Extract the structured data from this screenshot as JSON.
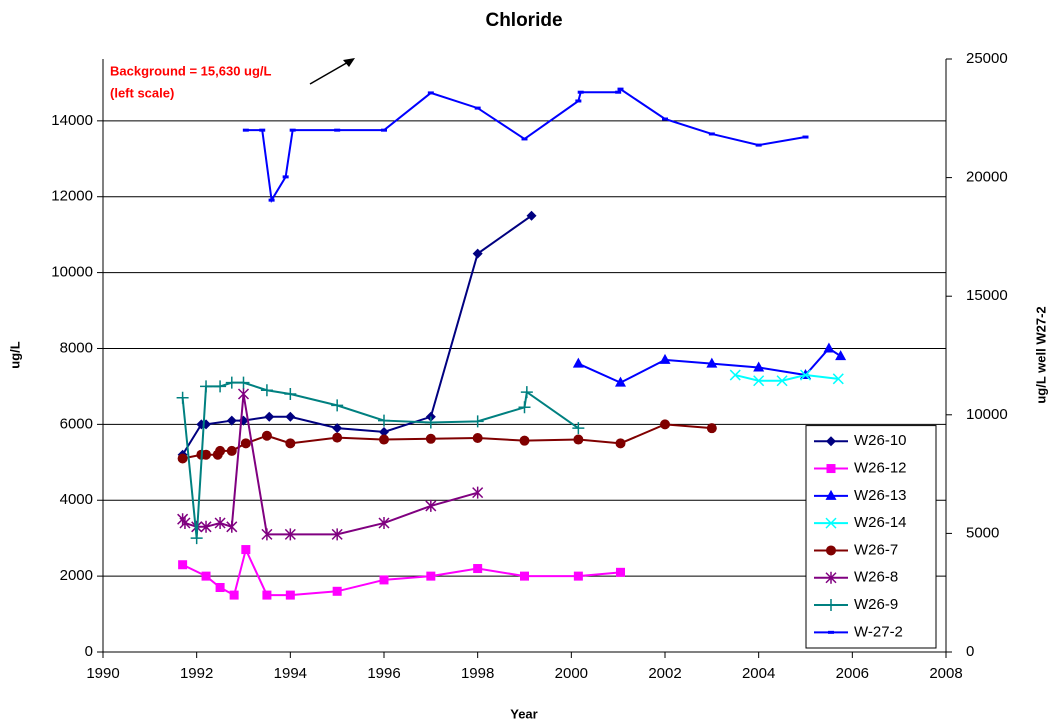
{
  "chart_data": {
    "type": "line",
    "title": "Chloride",
    "x_label": "Year",
    "y_label": "ug/L",
    "y2_label": "ug/L  well W27-2",
    "annotations": [
      "Background = 15,630 ug/L",
      "(left scale)"
    ],
    "xlim": [
      1990,
      2008
    ],
    "xticks": [
      1990,
      1992,
      1994,
      1996,
      1998,
      2000,
      2002,
      2004,
      2006,
      2008
    ],
    "ylim": [
      0,
      15630
    ],
    "yticks": [
      0,
      2000,
      4000,
      6000,
      8000,
      10000,
      12000,
      14000
    ],
    "y2lim": [
      0,
      25000
    ],
    "y2ticks": [
      0,
      5000,
      10000,
      15000,
      20000,
      25000
    ],
    "grid": true,
    "legend": "right",
    "series": [
      {
        "name": "W26-10",
        "color": "#000080",
        "marker": "diamond",
        "x": [
          1991.7,
          1992.1,
          1992.2,
          1992.75,
          1993.0,
          1993.55,
          1994.0,
          1995.0,
          1996.0,
          1997.0,
          1998.0,
          1999.15
        ],
        "values": [
          5200,
          6000,
          6000,
          6100,
          6100,
          6200,
          6200,
          5900,
          5800,
          6200,
          10500,
          11500
        ]
      },
      {
        "name": "W26-12",
        "color": "#ff00ff",
        "marker": "square",
        "x": [
          1991.7,
          1992.2,
          1992.5,
          1992.8,
          1993.05,
          1993.5,
          1994.0,
          1995.0,
          1996.0,
          1997.0,
          1998.0,
          1999.0,
          2000.15,
          2001.05
        ],
        "values": [
          2300,
          2000,
          1700,
          1500,
          2700,
          1500,
          1500,
          1600,
          1900,
          2000,
          2200,
          2000,
          2000,
          2100
        ]
      },
      {
        "name": "W26-13",
        "color": "#0000ff",
        "marker": "triangle",
        "x": [
          2000.15,
          2001.05,
          2002.0,
          2003.0,
          2004.0,
          2005.0,
          2005.5,
          2005.75
        ],
        "values": [
          7600,
          7100,
          7700,
          7600,
          7500,
          7300,
          8000,
          7800
        ]
      },
      {
        "name": "W26-14",
        "color": "#00ffff",
        "marker": "x",
        "x": [
          2003.5,
          2004.0,
          2004.5,
          2005.0,
          2005.7
        ],
        "values": [
          7300,
          7150,
          7150,
          7300,
          7200
        ]
      },
      {
        "name": "W26-7",
        "color": "#800000",
        "marker": "circle",
        "x": [
          1991.7,
          1992.1,
          1992.2,
          1992.45,
          1992.5,
          1992.75,
          1993.05,
          1993.5,
          1994.0,
          1995.0,
          1996.0,
          1997.0,
          1998.0,
          1999.0,
          2000.15,
          2001.05,
          2002.0,
          2003.0
        ],
        "values": [
          5100,
          5200,
          5200,
          5200,
          5300,
          5300,
          5500,
          5700,
          5500,
          5650,
          5600,
          5620,
          5640,
          5570,
          5600,
          5500,
          6000,
          5900
        ]
      },
      {
        "name": "W26-8",
        "color": "#800080",
        "marker": "star",
        "x": [
          1991.7,
          1991.75,
          1992.0,
          1992.2,
          1992.5,
          1992.75,
          1993.0,
          1993.5,
          1994.0,
          1995.0,
          1996.0,
          1997.0,
          1998.0
        ],
        "values": [
          3500,
          3400,
          3300,
          3300,
          3400,
          3300,
          6800,
          3100,
          3100,
          3100,
          3400,
          3850,
          4200
        ]
      },
      {
        "name": "W26-9",
        "color": "#008080",
        "marker": "plus",
        "x": [
          1991.7,
          1992.0,
          1992.2,
          1992.5,
          1992.75,
          1993.0,
          1993.5,
          1994.0,
          1995.0,
          1996.0,
          1997.0,
          1998.0,
          1999.0,
          1999.05,
          2000.15
        ],
        "values": [
          6700,
          3000,
          7000,
          7000,
          7100,
          7100,
          6900,
          6800,
          6500,
          6100,
          6050,
          6080,
          6450,
          6850,
          5900
        ]
      },
      {
        "name": "W-27-2",
        "color": "#0000ff",
        "marker": "dash",
        "axis": "y2",
        "x": [
          1993.05,
          1993.4,
          1993.6,
          1993.9,
          1994.05,
          1995.0,
          1996.0,
          1997.0,
          1998.0,
          1999.0,
          2000.15,
          2000.2,
          2001.0,
          2001.05,
          2002.0,
          2003.0,
          2004.0,
          2005.0
        ],
        "values": [
          22000,
          22000,
          19050,
          20030,
          22000,
          22000,
          22000,
          23570,
          22930,
          21630,
          23230,
          23600,
          23600,
          23730,
          22470,
          21840,
          21370,
          21710
        ]
      }
    ]
  }
}
